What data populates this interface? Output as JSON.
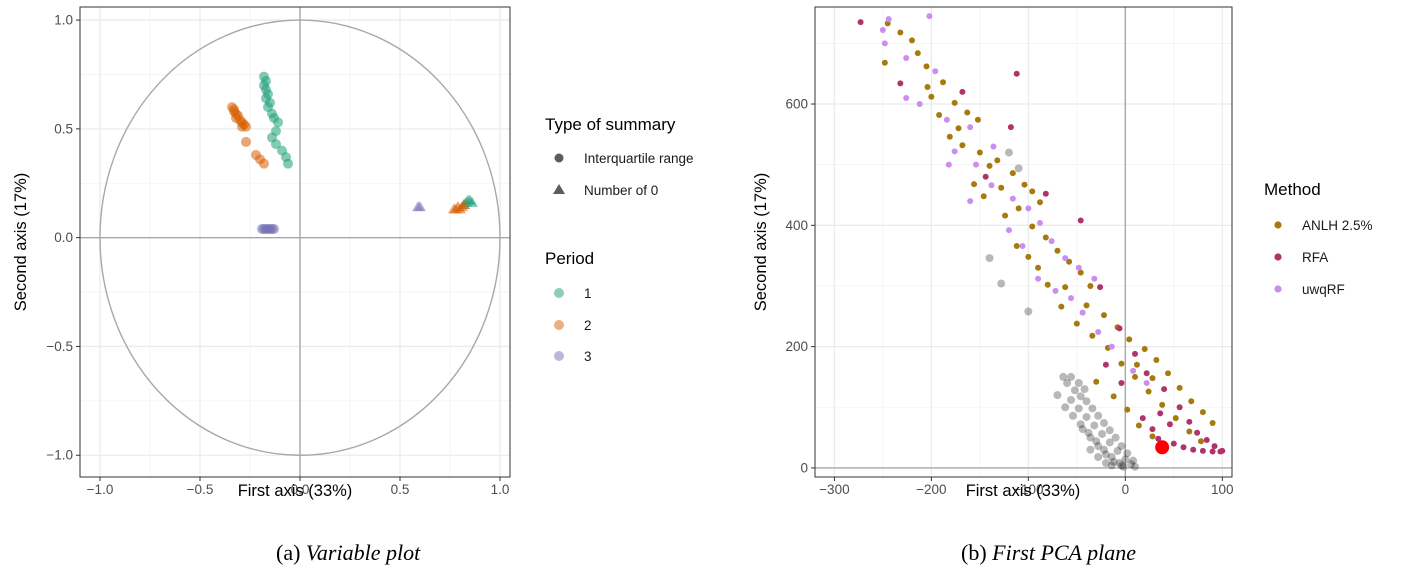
{
  "colors": {
    "period_1": "#1b9e77",
    "period_2": "#d95f02",
    "period_3": "#7570b3",
    "anlh": "#a67a0c",
    "rfa": "#b0346b",
    "uwqrf": "#c98ef0",
    "background_cloud": "#000000",
    "highlight_point": "#ff0000",
    "grid": "#ebebeb",
    "axis_line": "#a8a8a8"
  },
  "captions": {
    "a_label": "(a)",
    "a_text": "Variable plot",
    "b_label": "(b)",
    "b_text": "First PCA plane"
  },
  "legend_a": {
    "shape_title": "Type of summary",
    "shape_items": [
      "Interquartile range",
      "Number of 0"
    ],
    "color_title": "Period",
    "color_items": [
      "1",
      "2",
      "3"
    ]
  },
  "legend_b": {
    "title": "Method",
    "items": [
      "ANLH 2.5%",
      "RFA",
      "uwqRF"
    ]
  },
  "chart_data": [
    {
      "id": "variable_plot",
      "type": "scatter",
      "xlabel": "First axis (33%)",
      "ylabel": "Second axis (17%)",
      "xlim": [
        -1.1,
        1.05
      ],
      "ylim": [
        -1.1,
        1.06
      ],
      "xticks": [
        -1.0,
        -0.5,
        0.0,
        0.5,
        1.0
      ],
      "xtick_labels": [
        "−1.0",
        "−0.5",
        "0.0",
        "0.5",
        "1.0"
      ],
      "yticks": [
        -1.0,
        -0.5,
        0.0,
        0.5,
        1.0
      ],
      "ytick_labels": [
        "−1.0",
        "−0.5",
        "0.0",
        "0.5",
        "1.0"
      ],
      "unit_circle": true,
      "grid": true,
      "legend_position": "right",
      "series": [
        {
          "name": "1",
          "shape": "Interquartile range",
          "points": [
            [
              -0.18,
              0.74
            ],
            [
              -0.17,
              0.72
            ],
            [
              -0.18,
              0.7
            ],
            [
              -0.17,
              0.68
            ],
            [
              -0.16,
              0.66
            ],
            [
              -0.17,
              0.64
            ],
            [
              -0.15,
              0.62
            ],
            [
              -0.16,
              0.6
            ],
            [
              -0.14,
              0.57
            ],
            [
              -0.13,
              0.55
            ],
            [
              -0.11,
              0.53
            ],
            [
              -0.12,
              0.49
            ],
            [
              -0.14,
              0.46
            ],
            [
              -0.12,
              0.43
            ],
            [
              -0.09,
              0.4
            ],
            [
              -0.07,
              0.37
            ],
            [
              -0.06,
              0.34
            ]
          ]
        },
        {
          "name": "1",
          "shape": "Number of 0",
          "points": [
            [
              0.83,
              0.16
            ],
            [
              0.84,
              0.17
            ],
            [
              0.85,
              0.17
            ],
            [
              0.82,
              0.15
            ],
            [
              0.86,
              0.16
            ]
          ]
        },
        {
          "name": "2",
          "shape": "Interquartile range",
          "points": [
            [
              -0.34,
              0.6
            ],
            [
              -0.33,
              0.59
            ],
            [
              -0.33,
              0.58
            ],
            [
              -0.32,
              0.57
            ],
            [
              -0.31,
              0.56
            ],
            [
              -0.32,
              0.55
            ],
            [
              -0.3,
              0.54
            ],
            [
              -0.29,
              0.53
            ],
            [
              -0.28,
              0.52
            ],
            [
              -0.29,
              0.51
            ],
            [
              -0.27,
              0.51
            ],
            [
              -0.27,
              0.44
            ],
            [
              -0.22,
              0.38
            ],
            [
              -0.2,
              0.36
            ],
            [
              -0.18,
              0.34
            ]
          ]
        },
        {
          "name": "2",
          "shape": "Number of 0",
          "points": [
            [
              0.78,
              0.13
            ],
            [
              0.79,
              0.14
            ],
            [
              0.8,
              0.13
            ],
            [
              0.81,
              0.14
            ],
            [
              0.82,
              0.15
            ],
            [
              0.77,
              0.13
            ]
          ]
        },
        {
          "name": "3",
          "shape": "Interquartile range",
          "points": [
            [
              -0.19,
              0.04
            ],
            [
              -0.18,
              0.04
            ],
            [
              -0.17,
              0.04
            ],
            [
              -0.16,
              0.04
            ],
            [
              -0.15,
              0.04
            ],
            [
              -0.14,
              0.04
            ],
            [
              -0.13,
              0.04
            ]
          ]
        },
        {
          "name": "3",
          "shape": "Number of 0",
          "points": [
            [
              0.59,
              0.14
            ],
            [
              0.6,
              0.14
            ]
          ]
        }
      ]
    },
    {
      "id": "first_pca_plane",
      "type": "scatter",
      "xlabel": "First axis (33%)",
      "ylabel": "Second axis (17%)",
      "xlim": [
        -320,
        110
      ],
      "ylim": [
        -15,
        760
      ],
      "xticks": [
        -300,
        -200,
        -100,
        0,
        100
      ],
      "xtick_labels": [
        "−300",
        "−200",
        "−100",
        "0",
        "100"
      ],
      "yticks": [
        0,
        200,
        400,
        600
      ],
      "ytick_labels": [
        "0",
        "200",
        "400",
        "600"
      ],
      "grid": true,
      "legend_position": "right",
      "series": [
        {
          "name": "ANLH 2.5%",
          "points": [
            [
              -245,
              733
            ],
            [
              -232,
              718
            ],
            [
              -220,
              705
            ],
            [
              -214,
              684
            ],
            [
              -205,
              662
            ],
            [
              -248,
              668
            ],
            [
              -188,
              636
            ],
            [
              -200,
              612
            ],
            [
              -176,
              602
            ],
            [
              -163,
              586
            ],
            [
              -152,
              574
            ],
            [
              -181,
              546
            ],
            [
              -168,
              532
            ],
            [
              -140,
              498
            ],
            [
              -132,
              507
            ],
            [
              -116,
              486
            ],
            [
              -104,
              467
            ],
            [
              -96,
              456
            ],
            [
              -88,
              438
            ],
            [
              -124,
              416
            ],
            [
              -110,
              428
            ],
            [
              -96,
              398
            ],
            [
              -82,
              380
            ],
            [
              -70,
              358
            ],
            [
              -58,
              340
            ],
            [
              -46,
              322
            ],
            [
              -36,
              300
            ],
            [
              -62,
              298
            ],
            [
              -40,
              268
            ],
            [
              -22,
              252
            ],
            [
              -8,
              232
            ],
            [
              4,
              212
            ],
            [
              20,
              196
            ],
            [
              32,
              178
            ],
            [
              44,
              156
            ],
            [
              56,
              132
            ],
            [
              68,
              110
            ],
            [
              80,
              92
            ],
            [
              90,
              74
            ],
            [
              -18,
              198
            ],
            [
              -4,
              172
            ],
            [
              10,
              150
            ],
            [
              24,
              126
            ],
            [
              38,
              104
            ],
            [
              52,
              82
            ],
            [
              66,
              60
            ],
            [
              78,
              44
            ],
            [
              -30,
              142
            ],
            [
              -12,
              118
            ],
            [
              2,
              96
            ],
            [
              14,
              70
            ],
            [
              28,
              52
            ],
            [
              40,
              38
            ],
            [
              12,
              170
            ],
            [
              28,
              148
            ],
            [
              -50,
              238
            ],
            [
              -34,
              218
            ],
            [
              -66,
              266
            ],
            [
              -80,
              302
            ],
            [
              -90,
              330
            ],
            [
              -146,
              448
            ],
            [
              -156,
              468
            ],
            [
              -128,
              462
            ],
            [
              -150,
              520
            ],
            [
              -172,
              560
            ],
            [
              -192,
              582
            ],
            [
              -204,
              628
            ],
            [
              -112,
              366
            ],
            [
              -100,
              348
            ]
          ]
        },
        {
          "name": "RFA",
          "points": [
            [
              -273,
              735
            ],
            [
              -232,
              634
            ],
            [
              -168,
              620
            ],
            [
              -112,
              650
            ],
            [
              -118,
              562
            ],
            [
              -144,
              480
            ],
            [
              -82,
              452
            ],
            [
              -46,
              408
            ],
            [
              -26,
              298
            ],
            [
              -6,
              230
            ],
            [
              10,
              188
            ],
            [
              22,
              156
            ],
            [
              40,
              130
            ],
            [
              56,
              100
            ],
            [
              66,
              76
            ],
            [
              74,
              58
            ],
            [
              84,
              46
            ],
            [
              92,
              36
            ],
            [
              100,
              28
            ],
            [
              34,
              48
            ],
            [
              50,
              40
            ],
            [
              60,
              34
            ],
            [
              70,
              30
            ],
            [
              80,
              28
            ],
            [
              90,
              27
            ],
            [
              98,
              27
            ],
            [
              46,
              72
            ],
            [
              36,
              90
            ],
            [
              -4,
              140
            ],
            [
              -20,
              170
            ],
            [
              18,
              82
            ],
            [
              28,
              64
            ]
          ]
        },
        {
          "name": "uwqRF",
          "points": [
            [
              -250,
              722
            ],
            [
              -244,
              740
            ],
            [
              -202,
              745
            ],
            [
              -248,
              700
            ],
            [
              -226,
              676
            ],
            [
              -196,
              654
            ],
            [
              -212,
              600
            ],
            [
              -184,
              574
            ],
            [
              -160,
              562
            ],
            [
              -136,
              530
            ],
            [
              -176,
              522
            ],
            [
              -154,
              500
            ],
            [
              -138,
              466
            ],
            [
              -116,
              444
            ],
            [
              -100,
              428
            ],
            [
              -88,
              404
            ],
            [
              -76,
              374
            ],
            [
              -62,
              346
            ],
            [
              -90,
              312
            ],
            [
              -72,
              292
            ],
            [
              -56,
              280
            ],
            [
              -44,
              256
            ],
            [
              -28,
              224
            ],
            [
              -14,
              200
            ],
            [
              -48,
              330
            ],
            [
              -32,
              312
            ],
            [
              -120,
              392
            ],
            [
              -106,
              366
            ],
            [
              8,
              160
            ],
            [
              22,
              140
            ],
            [
              -160,
              440
            ],
            [
              -182,
              500
            ],
            [
              -226,
              610
            ]
          ]
        },
        {
          "name": "background",
          "points": [
            [
              -60,
              140
            ],
            [
              -52,
              128
            ],
            [
              -46,
              118
            ],
            [
              -40,
              110
            ],
            [
              -34,
              98
            ],
            [
              -28,
              86
            ],
            [
              -22,
              74
            ],
            [
              -16,
              62
            ],
            [
              -10,
              50
            ],
            [
              -4,
              36
            ],
            [
              2,
              24
            ],
            [
              8,
              12
            ],
            [
              -56,
              112
            ],
            [
              -48,
              98
            ],
            [
              -40,
              84
            ],
            [
              -32,
              70
            ],
            [
              -24,
              56
            ],
            [
              -16,
              42
            ],
            [
              -8,
              28
            ],
            [
              0,
              14
            ],
            [
              6,
              6
            ],
            [
              -44,
              64
            ],
            [
              -36,
              50
            ],
            [
              -28,
              36
            ],
            [
              -20,
              22
            ],
            [
              -12,
              10
            ],
            [
              -4,
              4
            ],
            [
              -36,
              30
            ],
            [
              -28,
              18
            ],
            [
              -20,
              8
            ],
            [
              -14,
              4
            ],
            [
              -62,
              100
            ],
            [
              -54,
              86
            ],
            [
              -46,
              72
            ],
            [
              -38,
              58
            ],
            [
              -30,
              44
            ],
            [
              -22,
              30
            ],
            [
              -14,
              18
            ],
            [
              -6,
              8
            ],
            [
              -2,
              2
            ],
            [
              10,
              2
            ],
            [
              -64,
              150
            ],
            [
              -70,
              120
            ],
            [
              -56,
              150
            ],
            [
              -48,
              140
            ],
            [
              -42,
              130
            ],
            [
              -120,
              520
            ],
            [
              -110,
              494
            ],
            [
              -140,
              346
            ],
            [
              -128,
              304
            ],
            [
              -100,
              258
            ]
          ]
        },
        {
          "name": "highlight",
          "points": [
            [
              38,
              34
            ]
          ]
        }
      ]
    }
  ]
}
